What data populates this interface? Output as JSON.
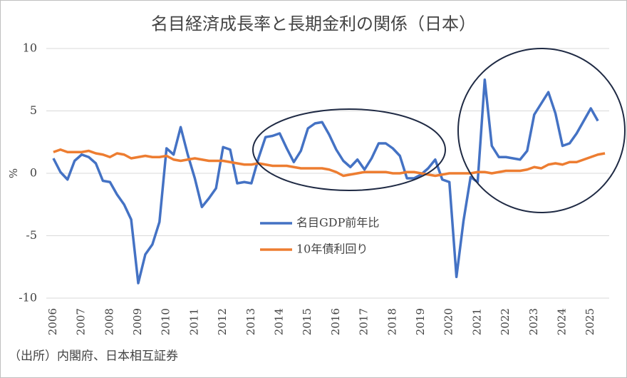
{
  "chart_data": {
    "type": "line",
    "title": "名目経済成長率と長期金利の関係（日本）",
    "y_label": "%",
    "source": "（出所）内閣府、日本相互証券",
    "x": [
      2006,
      2006.25,
      2006.5,
      2006.75,
      2007,
      2007.25,
      2007.5,
      2007.75,
      2008,
      2008.25,
      2008.5,
      2008.75,
      2009,
      2009.25,
      2009.5,
      2009.75,
      2010,
      2010.25,
      2010.5,
      2010.75,
      2011,
      2011.25,
      2011.5,
      2011.75,
      2012,
      2012.25,
      2012.5,
      2012.75,
      2013,
      2013.25,
      2013.5,
      2013.75,
      2014,
      2014.25,
      2014.5,
      2014.75,
      2015,
      2015.25,
      2015.5,
      2015.75,
      2016,
      2016.25,
      2016.5,
      2016.75,
      2017,
      2017.25,
      2017.5,
      2017.75,
      2018,
      2018.25,
      2018.5,
      2018.75,
      2019,
      2019.25,
      2019.5,
      2019.75,
      2020,
      2020.25,
      2020.5,
      2020.75,
      2021,
      2021.25,
      2021.5,
      2021.75,
      2022,
      2022.25,
      2022.5,
      2022.75,
      2023,
      2023.25,
      2023.5,
      2023.75,
      2024,
      2024.25,
      2024.5,
      2024.75,
      2025,
      2025.25,
      2025.5
    ],
    "series": [
      {
        "name": "名目GDP前年比",
        "color": "#4472c4",
        "values": [
          1.2,
          0.1,
          -0.5,
          1.0,
          1.5,
          1.3,
          0.8,
          -0.6,
          -0.7,
          -1.7,
          -2.5,
          -3.7,
          -8.8,
          -6.5,
          -5.7,
          -3.9,
          2.0,
          1.5,
          3.7,
          1.5,
          -0.4,
          -2.7,
          -2.0,
          -1.2,
          2.1,
          1.9,
          -0.8,
          -0.7,
          -0.8,
          1.2,
          2.9,
          3.0,
          3.2,
          2.0,
          0.9,
          1.8,
          3.6,
          4.0,
          4.1,
          3.1,
          1.9,
          1.0,
          0.5,
          1.1,
          0.3,
          1.2,
          2.4,
          2.4,
          2.0,
          1.4,
          -0.4,
          -0.4,
          -0.1,
          0.4,
          1.1,
          -0.5,
          -0.7,
          -8.3,
          -3.8,
          -0.3,
          -0.7,
          7.5,
          2.2,
          1.3,
          1.3,
          1.2,
          1.1,
          1.8,
          4.7,
          5.6,
          6.5,
          4.8,
          2.2,
          2.4,
          3.2,
          4.2,
          5.2,
          4.2,
          null
        ]
      },
      {
        "name": "10年債利回り",
        "color": "#ed7d31",
        "values": [
          1.7,
          1.9,
          1.7,
          1.7,
          1.7,
          1.8,
          1.6,
          1.5,
          1.3,
          1.6,
          1.5,
          1.2,
          1.3,
          1.4,
          1.3,
          1.3,
          1.4,
          1.1,
          1.0,
          1.1,
          1.2,
          1.1,
          1.0,
          1.0,
          1.0,
          0.9,
          0.8,
          0.7,
          0.7,
          0.8,
          0.7,
          0.6,
          0.6,
          0.6,
          0.5,
          0.4,
          0.4,
          0.4,
          0.4,
          0.3,
          0.1,
          -0.2,
          -0.1,
          0.0,
          0.1,
          0.1,
          0.1,
          0.1,
          0.0,
          0.0,
          0.1,
          0.1,
          0.0,
          -0.1,
          -0.2,
          -0.1,
          0.0,
          0.0,
          0.0,
          0.0,
          0.1,
          0.1,
          0.0,
          0.1,
          0.2,
          0.2,
          0.2,
          0.3,
          0.5,
          0.4,
          0.7,
          0.8,
          0.7,
          0.9,
          0.9,
          1.1,
          1.3,
          1.5,
          1.6
        ]
      }
    ],
    "xlim": [
      2005.75,
      2025.65
    ],
    "xticks": [
      2006,
      2007,
      2008,
      2009,
      2010,
      2011,
      2012,
      2013,
      2014,
      2015,
      2016,
      2017,
      2018,
      2019,
      2020,
      2021,
      2022,
      2023,
      2024,
      2025
    ],
    "ylim": [
      -10,
      10
    ],
    "yticks": [
      10,
      5,
      0,
      -5,
      -10
    ],
    "grid": true
  }
}
